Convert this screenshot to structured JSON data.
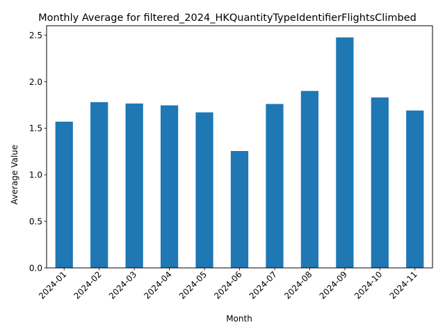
{
  "chart_data": {
    "type": "bar",
    "title": "Monthly Average for filtered_2024_HKQuantityTypeIdentifierFlightsClimbed",
    "xlabel": "Month",
    "ylabel": "Average Value",
    "categories": [
      "2024-01",
      "2024-02",
      "2024-03",
      "2024-04",
      "2024-05",
      "2024-06",
      "2024-07",
      "2024-08",
      "2024-09",
      "2024-10",
      "2024-11"
    ],
    "values": [
      1.57,
      1.78,
      1.765,
      1.745,
      1.67,
      1.255,
      1.76,
      1.9,
      2.475,
      1.83,
      1.69
    ],
    "ylim": [
      0,
      2.6
    ],
    "yticks": [
      "0.0",
      "0.5",
      "1.0",
      "1.5",
      "2.0",
      "2.5"
    ],
    "grid": false,
    "legend": "none",
    "bar_color": "#1f77b4",
    "tick_rotation_deg": 45
  }
}
